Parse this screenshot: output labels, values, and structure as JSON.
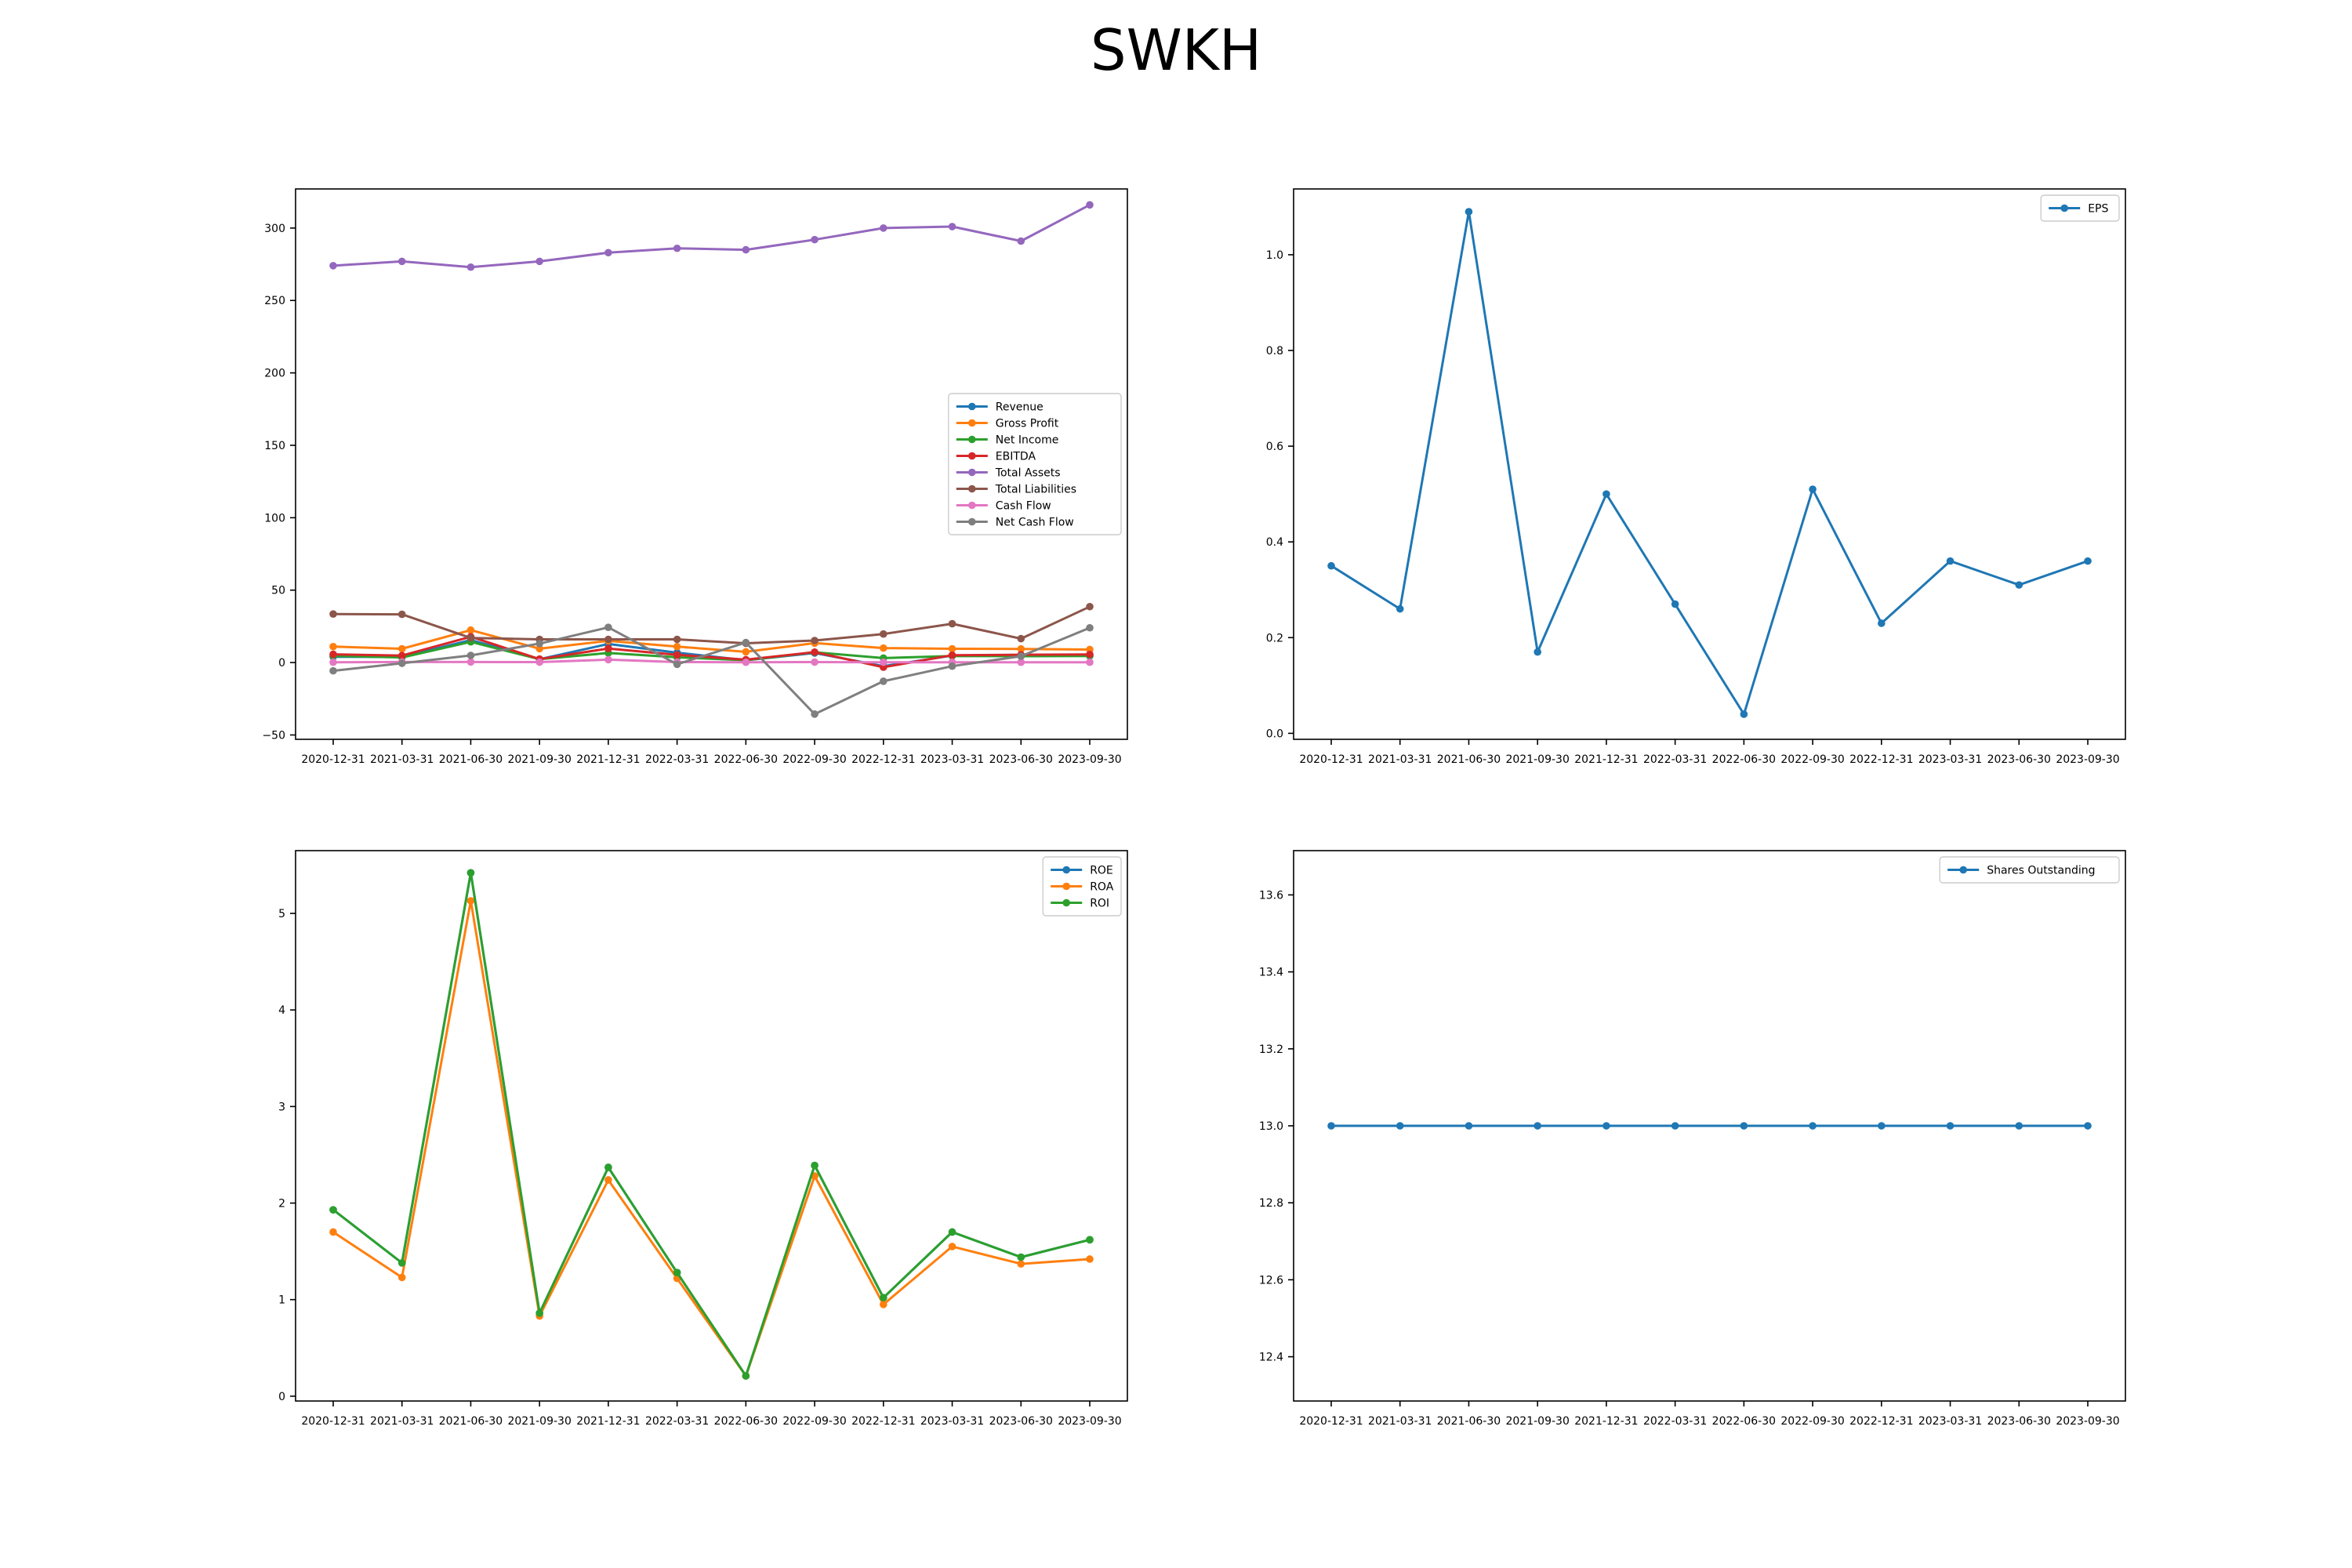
{
  "figure": {
    "title": "SWKH"
  },
  "colors": {
    "blue": "#1f77b4",
    "orange": "#ff7f0e",
    "green": "#2ca02c",
    "red": "#d62728",
    "purple": "#9467bd",
    "brown": "#8c564b",
    "pink": "#e377c2",
    "gray": "#7f7f7f"
  },
  "chart_data": [
    {
      "type": "line",
      "title": "",
      "xlabel": "",
      "ylabel": "",
      "x": [
        "2020-12-31",
        "2021-03-31",
        "2021-06-30",
        "2021-09-30",
        "2021-12-31",
        "2022-03-31",
        "2022-06-30",
        "2022-09-30",
        "2022-12-31",
        "2023-03-31",
        "2023-06-30",
        "2023-09-30"
      ],
      "ylim": [
        -53,
        327
      ],
      "yticks": [
        -50,
        0,
        50,
        100,
        150,
        200,
        250,
        300
      ],
      "ytick_labels": [
        "−50",
        "0",
        "50",
        "100",
        "150",
        "200",
        "250",
        "300"
      ],
      "legend": "center-right",
      "grid": false,
      "series": [
        {
          "name": "Revenue",
          "color": "#1f77b4",
          "values": [
            4.0,
            3.9,
            15.5,
            2.3,
            12.8,
            6.8,
            1.6,
            6.6,
            -2.5,
            4.8,
            4.6,
            4.7
          ]
        },
        {
          "name": "Gross Profit",
          "color": "#ff7f0e",
          "values": [
            11.0,
            9.5,
            22.4,
            9.6,
            15.0,
            11.0,
            7.4,
            13.4,
            10.0,
            9.5,
            9.4,
            9.0
          ]
        },
        {
          "name": "Net Income",
          "color": "#2ca02c",
          "values": [
            4.6,
            3.5,
            14.3,
            2.3,
            6.6,
            3.6,
            1.6,
            7.1,
            3.1,
            4.5,
            4.4,
            4.5
          ]
        },
        {
          "name": "EBITDA",
          "color": "#d62728",
          "values": [
            5.7,
            4.8,
            17.8,
            2.4,
            9.7,
            5.3,
            2.0,
            7.2,
            -3.2,
            5.1,
            5.4,
            5.6
          ]
        },
        {
          "name": "Total Assets",
          "color": "#9467bd",
          "values": [
            274,
            277,
            273,
            277,
            283,
            286,
            285,
            292,
            300,
            301,
            291,
            316
          ]
        },
        {
          "name": "Total Liabilities",
          "color": "#8c564b",
          "values": [
            33.5,
            33.3,
            17.0,
            16.0,
            16.0,
            16.0,
            13.3,
            15.2,
            19.7,
            26.8,
            16.5,
            38.6
          ]
        },
        {
          "name": "Cash Flow",
          "color": "#e377c2",
          "values": [
            0.2,
            0.4,
            0.4,
            0.3,
            2.0,
            0.3,
            0.2,
            0.3,
            0.2,
            0.2,
            0.2,
            0.2
          ]
        },
        {
          "name": "Net Cash Flow",
          "color": "#7f7f7f",
          "values": [
            -5.7,
            -0.5,
            4.9,
            13.1,
            24.3,
            -1.2,
            13.8,
            -35.6,
            -12.9,
            -2.5,
            4.4,
            24.0
          ]
        }
      ]
    },
    {
      "type": "line",
      "title": "",
      "xlabel": "",
      "ylabel": "",
      "x": [
        "2020-12-31",
        "2021-03-31",
        "2021-06-30",
        "2021-09-30",
        "2021-12-31",
        "2022-03-31",
        "2022-06-30",
        "2022-09-30",
        "2022-12-31",
        "2023-03-31",
        "2023-06-30",
        "2023-09-30"
      ],
      "ylim": [
        -0.0125,
        1.1375
      ],
      "yticks": [
        0.0,
        0.2,
        0.4,
        0.6,
        0.8,
        1.0
      ],
      "ytick_labels": [
        "0.0",
        "0.2",
        "0.4",
        "0.6",
        "0.8",
        "1.0"
      ],
      "legend": "top-right",
      "grid": false,
      "series": [
        {
          "name": "EPS",
          "color": "#1f77b4",
          "values": [
            0.35,
            0.26,
            1.09,
            0.17,
            0.5,
            0.27,
            0.04,
            0.51,
            0.23,
            0.36,
            0.31,
            0.36
          ]
        }
      ]
    },
    {
      "type": "line",
      "title": "",
      "xlabel": "",
      "ylabel": "",
      "x": [
        "2020-12-31",
        "2021-03-31",
        "2021-06-30",
        "2021-09-30",
        "2021-12-31",
        "2022-03-31",
        "2022-06-30",
        "2022-09-30",
        "2022-12-31",
        "2023-03-31",
        "2023-06-30",
        "2023-09-30"
      ],
      "ylim": [
        -0.05,
        5.65
      ],
      "yticks": [
        0,
        1,
        2,
        3,
        4,
        5
      ],
      "ytick_labels": [
        "0",
        "1",
        "2",
        "3",
        "4",
        "5"
      ],
      "legend": "top-right",
      "grid": false,
      "series": [
        {
          "name": "ROE",
          "color": "#1f77b4",
          "values": [
            1.93,
            1.38,
            5.42,
            0.86,
            2.37,
            1.28,
            0.21,
            2.39,
            1.02,
            1.7,
            1.44,
            1.62
          ]
        },
        {
          "name": "ROA",
          "color": "#ff7f0e",
          "values": [
            1.7,
            1.23,
            5.13,
            0.83,
            2.24,
            1.22,
            0.21,
            2.28,
            0.95,
            1.55,
            1.37,
            1.42
          ]
        },
        {
          "name": "ROI",
          "color": "#2ca02c",
          "values": [
            1.93,
            1.38,
            5.42,
            0.86,
            2.37,
            1.28,
            0.21,
            2.39,
            1.02,
            1.7,
            1.44,
            1.62
          ]
        }
      ]
    },
    {
      "type": "line",
      "title": "",
      "xlabel": "",
      "ylabel": "",
      "x": [
        "2020-12-31",
        "2021-03-31",
        "2021-06-30",
        "2021-09-30",
        "2021-12-31",
        "2022-03-31",
        "2022-06-30",
        "2022-09-30",
        "2022-12-31",
        "2023-03-31",
        "2023-06-30",
        "2023-09-30"
      ],
      "ylim": [
        12.285,
        13.715
      ],
      "yticks": [
        12.4,
        12.6,
        12.8,
        13.0,
        13.2,
        13.4,
        13.6
      ],
      "ytick_labels": [
        "12.4",
        "12.6",
        "12.8",
        "13.0",
        "13.2",
        "13.4",
        "13.6"
      ],
      "legend": "top-right",
      "grid": false,
      "series": [
        {
          "name": "Shares Outstanding",
          "color": "#1f77b4",
          "values": [
            13,
            13,
            13,
            13,
            13,
            13,
            13,
            13,
            13,
            13,
            13,
            13
          ]
        }
      ]
    }
  ]
}
